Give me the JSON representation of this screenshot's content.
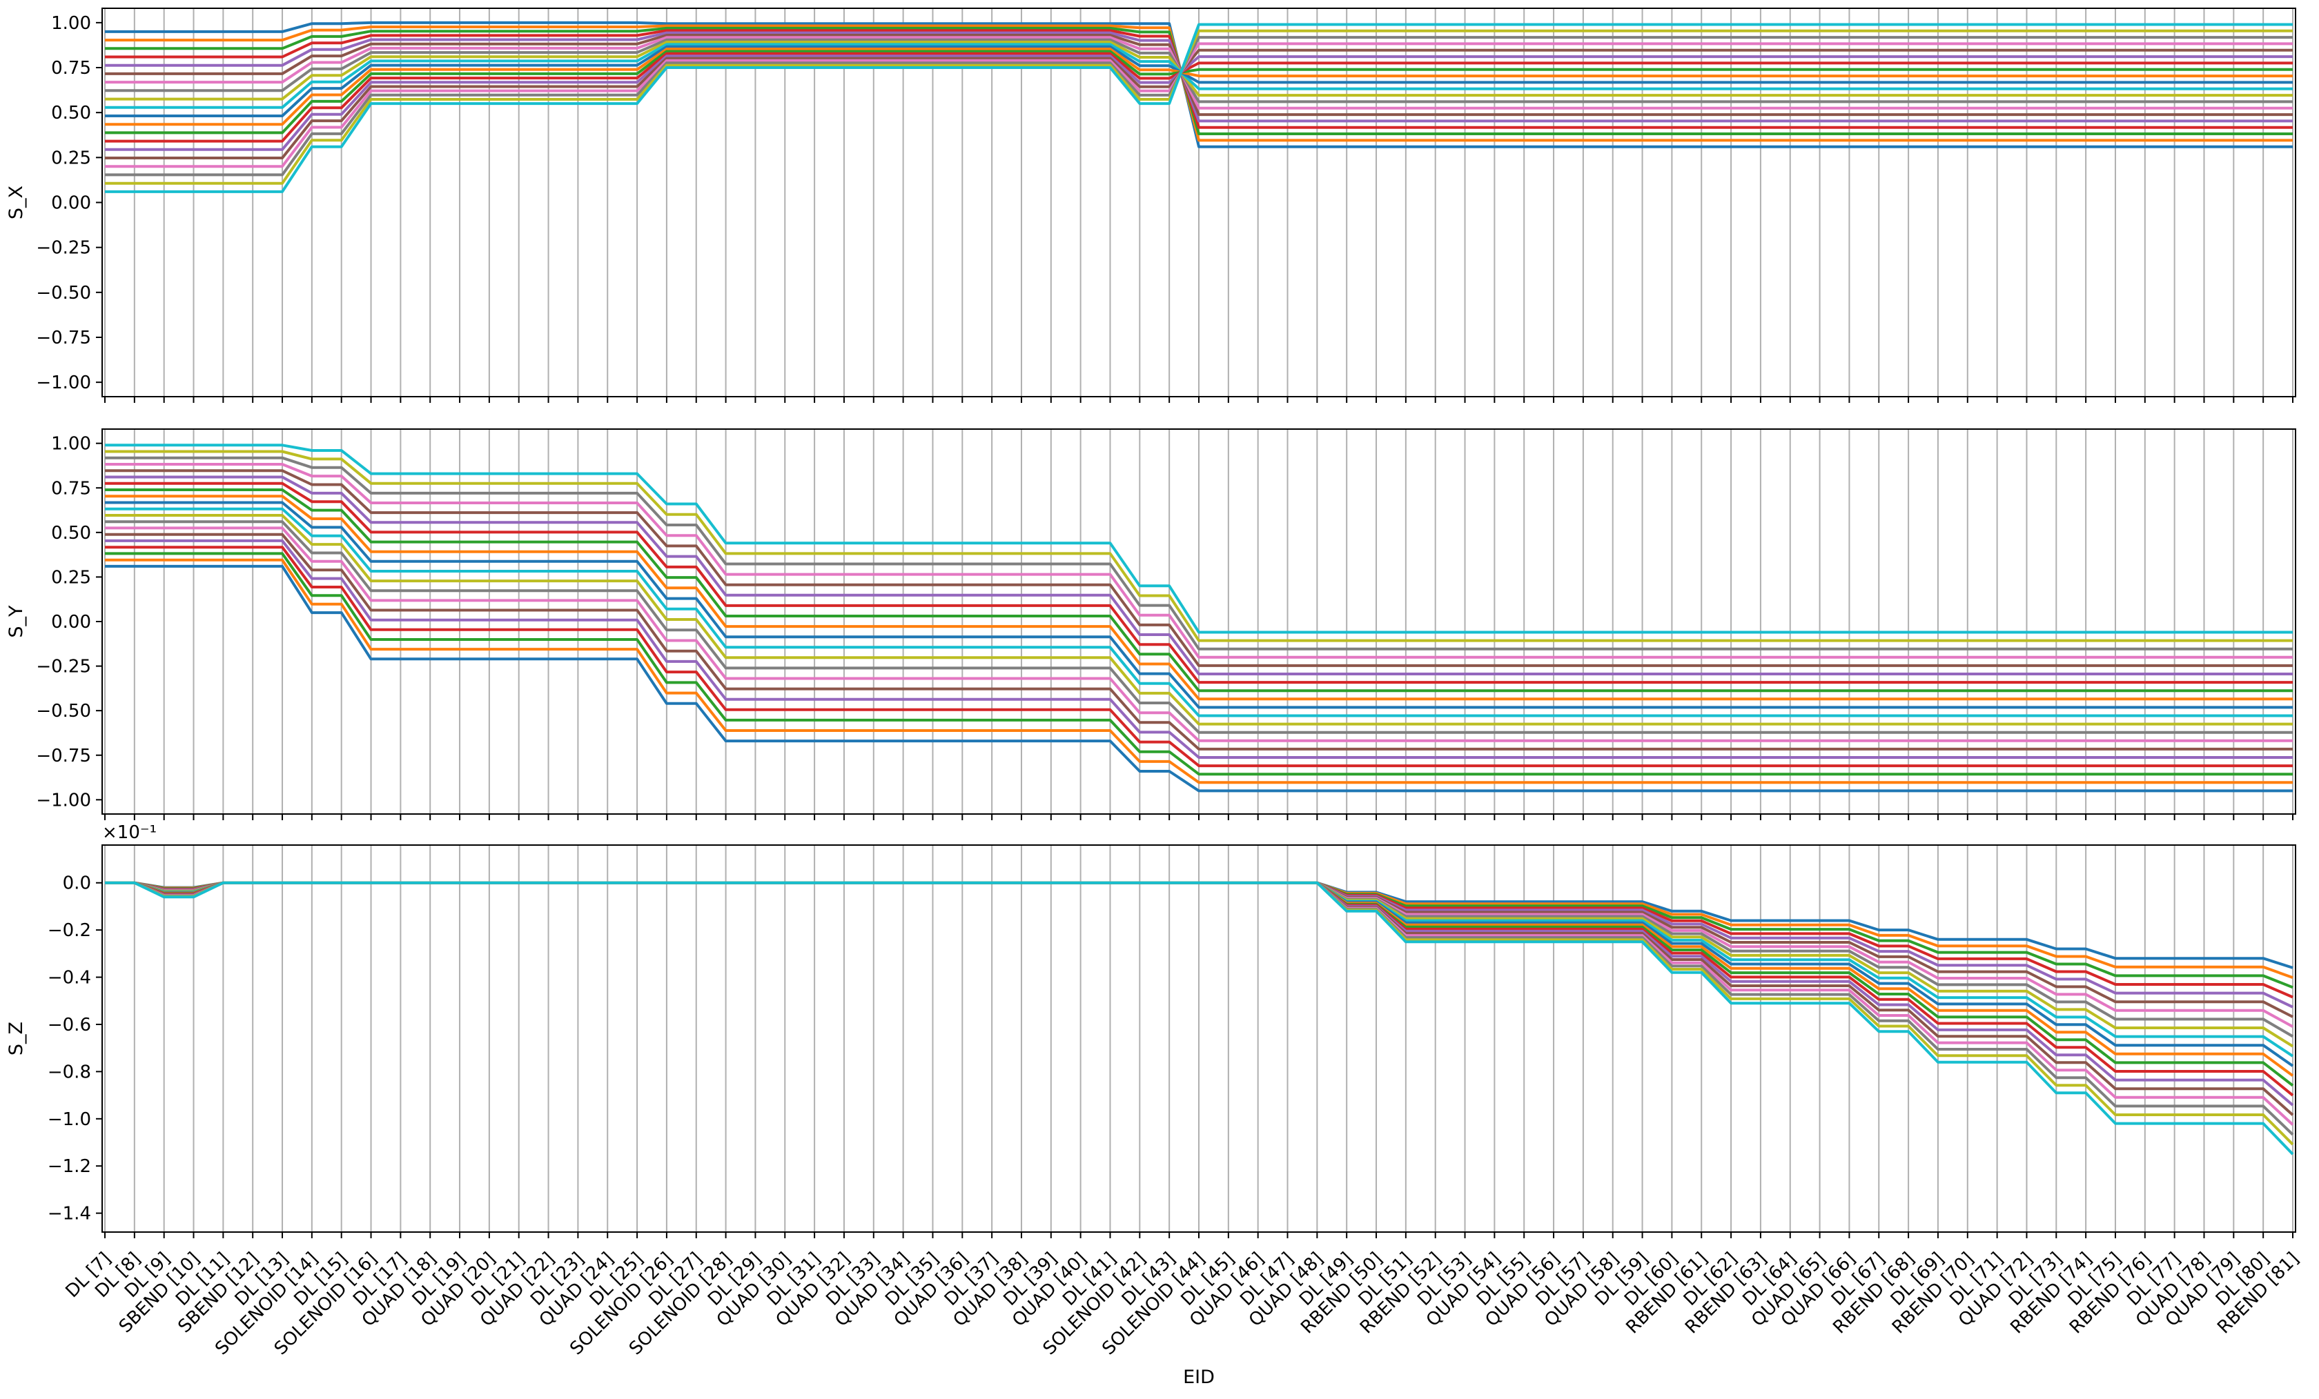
{
  "chart_data": {
    "type": "line",
    "xlabel": "EID",
    "x": [
      "DL [7]",
      "DL [8]",
      "DL [9]",
      "SBEND [10]",
      "DL [11]",
      "SBEND [12]",
      "DL [13]",
      "SOLENOID [14]",
      "DL [15]",
      "SOLENOID [16]",
      "DL [17]",
      "QUAD [18]",
      "DL [19]",
      "QUAD [20]",
      "DL [21]",
      "QUAD [22]",
      "DL [23]",
      "QUAD [24]",
      "DL [25]",
      "SOLENOID [26]",
      "DL [27]",
      "SOLENOID [28]",
      "DL [29]",
      "QUAD [30]",
      "DL [31]",
      "QUAD [32]",
      "DL [33]",
      "QUAD [34]",
      "DL [35]",
      "QUAD [36]",
      "DL [37]",
      "QUAD [38]",
      "DL [39]",
      "QUAD [40]",
      "DL [41]",
      "SOLENOID [42]",
      "DL [43]",
      "SOLENOID [44]",
      "DL [45]",
      "QUAD [46]",
      "DL [47]",
      "QUAD [48]",
      "DL [49]",
      "RBEND [50]",
      "DL [51]",
      "RBEND [52]",
      "DL [53]",
      "QUAD [54]",
      "DL [55]",
      "QUAD [56]",
      "DL [57]",
      "QUAD [58]",
      "DL [59]",
      "DL [60]",
      "RBEND [61]",
      "DL [62]",
      "RBEND [63]",
      "DL [64]",
      "QUAD [65]",
      "QUAD [66]",
      "DL [67]",
      "RBEND [68]",
      "DL [69]",
      "RBEND [70]",
      "DL [71]",
      "QUAD [72]",
      "DL [73]",
      "RBEND [74]",
      "DL [75]",
      "RBEND [76]",
      "DL [77]",
      "QUAD [78]",
      "QUAD [79]",
      "DL [80]",
      "RBEND [81]"
    ],
    "grid": "vertical",
    "colors": [
      "#1f77b4",
      "#ff7f0e",
      "#2ca02c",
      "#d62728",
      "#9467bd",
      "#8c564b",
      "#e377c2",
      "#7f7f7f",
      "#bcbd22",
      "#17becf"
    ],
    "n_series": 20,
    "panels": [
      {
        "ylabel": "S_X",
        "ylim": [
          -1.08,
          1.08
        ],
        "yticks": [
          1.0,
          0.75,
          0.5,
          0.25,
          0.0,
          -0.25,
          -0.5,
          -0.75,
          -1.0
        ],
        "ytick_labels": [
          "1.00",
          "0.75",
          "0.50",
          "0.25",
          "0.00",
          "−0.25",
          "−0.50",
          "−0.75",
          "−1.00"
        ],
        "show_xticklabels": false,
        "segments": [
          [
            0,
            6
          ],
          [
            7,
            8
          ],
          [
            9,
            18
          ],
          [
            19,
            20
          ],
          [
            21,
            34
          ],
          [
            35,
            36
          ],
          [
            37,
            74
          ]
        ],
        "series_ranges": [
          [
            0.95,
            0.995,
            1.0,
            0.995,
            0.995,
            0.995,
            0.31
          ],
          [
            0.06,
            0.31,
            0.55,
            0.75,
            0.75,
            0.55,
            0.99
          ]
        ]
      },
      {
        "ylabel": "S_Y",
        "ylim": [
          -1.08,
          1.08
        ],
        "yticks": [
          1.0,
          0.75,
          0.5,
          0.25,
          0.0,
          -0.25,
          -0.5,
          -0.75,
          -1.0
        ],
        "ytick_labels": [
          "1.00",
          "0.75",
          "0.50",
          "0.25",
          "0.00",
          "−0.25",
          "−0.50",
          "−0.75",
          "−1.00"
        ],
        "show_xticklabels": false,
        "segments": [
          [
            0,
            6
          ],
          [
            7,
            8
          ],
          [
            9,
            18
          ],
          [
            19,
            20
          ],
          [
            21,
            34
          ],
          [
            35,
            36
          ],
          [
            37,
            74
          ]
        ],
        "series_ranges": [
          [
            0.31,
            0.05,
            -0.21,
            -0.46,
            -0.67,
            -0.84,
            -0.95
          ],
          [
            0.99,
            0.96,
            0.83,
            0.66,
            0.44,
            0.2,
            -0.06
          ]
        ]
      },
      {
        "ylabel": "S_Z",
        "exponent_label": "×10⁻¹",
        "ylim": [
          -1.48,
          0.16
        ],
        "yticks": [
          0.0,
          -0.2,
          -0.4,
          -0.6,
          -0.8,
          -1.0,
          -1.2,
          -1.4
        ],
        "ytick_labels": [
          "0.0",
          "−0.2",
          "−0.4",
          "−0.6",
          "−0.8",
          "−1.0",
          "−1.2",
          "−1.4"
        ],
        "show_xticklabels": true,
        "segments": [
          [
            0,
            1
          ],
          [
            2,
            3
          ],
          [
            4,
            41
          ],
          [
            42,
            43
          ],
          [
            44,
            52
          ],
          [
            53,
            54
          ],
          [
            55,
            59
          ],
          [
            60,
            61
          ],
          [
            62,
            65
          ],
          [
            66,
            67
          ],
          [
            68,
            69
          ],
          [
            70,
            71
          ],
          [
            72,
            73
          ],
          [
            74,
            74
          ]
        ],
        "series_ranges": [
          [
            0.0,
            -0.02,
            0.0,
            -0.04,
            -0.08,
            -0.12,
            -0.16,
            -0.2,
            -0.24,
            -0.28,
            -0.32,
            -0.32,
            -0.32,
            -0.36
          ],
          [
            0.0,
            -0.06,
            0.0,
            -0.12,
            -0.25,
            -0.38,
            -0.51,
            -0.63,
            -0.76,
            -0.89,
            -1.02,
            -1.02,
            -1.02,
            -1.15
          ]
        ]
      }
    ]
  }
}
